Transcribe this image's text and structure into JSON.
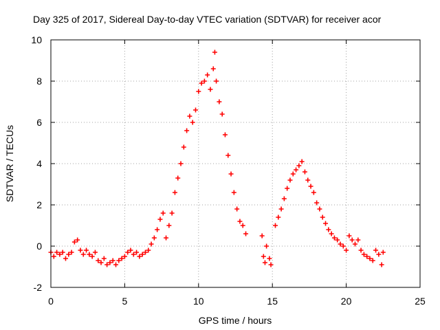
{
  "chart_data": {
    "type": "scatter",
    "title": "Day 325 of 2017, Sidereal Day-to-day VTEC variation (SDTVAR) for receiver acor",
    "xlabel": "GPS time / hours",
    "ylabel": "SDTVAR / TECUs",
    "xlim": [
      0,
      25
    ],
    "ylim": [
      -2,
      10
    ],
    "xticks": [
      0,
      5,
      10,
      15,
      20,
      25
    ],
    "yticks": [
      -2,
      0,
      2,
      4,
      6,
      8,
      10
    ],
    "xtick_labels": [
      "0",
      "5",
      "10",
      "15",
      "20",
      "25"
    ],
    "ytick_labels": [
      "-2",
      "0",
      "2",
      "4",
      "6",
      "8",
      "10"
    ],
    "grid": true,
    "marker": "+",
    "marker_color": "#ff0000",
    "series": [
      {
        "name": "SDTVAR",
        "points": [
          [
            0.0,
            -0.3
          ],
          [
            0.2,
            -0.5
          ],
          [
            0.4,
            -0.3
          ],
          [
            0.6,
            -0.4
          ],
          [
            0.8,
            -0.3
          ],
          [
            1.0,
            -0.6
          ],
          [
            1.2,
            -0.4
          ],
          [
            1.4,
            -0.3
          ],
          [
            1.6,
            0.2
          ],
          [
            1.8,
            0.3
          ],
          [
            2.0,
            -0.2
          ],
          [
            2.2,
            -0.4
          ],
          [
            2.4,
            -0.2
          ],
          [
            2.6,
            -0.4
          ],
          [
            2.8,
            -0.5
          ],
          [
            3.0,
            -0.3
          ],
          [
            3.2,
            -0.7
          ],
          [
            3.4,
            -0.8
          ],
          [
            3.6,
            -0.6
          ],
          [
            3.8,
            -0.9
          ],
          [
            4.0,
            -0.8
          ],
          [
            4.2,
            -0.7
          ],
          [
            4.4,
            -0.9
          ],
          [
            4.6,
            -0.7
          ],
          [
            4.8,
            -0.6
          ],
          [
            5.0,
            -0.5
          ],
          [
            5.2,
            -0.3
          ],
          [
            5.4,
            -0.2
          ],
          [
            5.6,
            -0.4
          ],
          [
            5.8,
            -0.3
          ],
          [
            6.0,
            -0.5
          ],
          [
            6.2,
            -0.4
          ],
          [
            6.4,
            -0.3
          ],
          [
            6.6,
            -0.2
          ],
          [
            6.8,
            0.1
          ],
          [
            7.0,
            0.4
          ],
          [
            7.2,
            0.8
          ],
          [
            7.4,
            1.3
          ],
          [
            7.6,
            1.6
          ],
          [
            7.8,
            0.4
          ],
          [
            8.0,
            1.0
          ],
          [
            8.2,
            1.6
          ],
          [
            8.4,
            2.6
          ],
          [
            8.6,
            3.3
          ],
          [
            8.8,
            4.0
          ],
          [
            9.0,
            4.8
          ],
          [
            9.2,
            5.6
          ],
          [
            9.4,
            6.3
          ],
          [
            9.6,
            6.0
          ],
          [
            9.8,
            6.6
          ],
          [
            10.0,
            7.5
          ],
          [
            10.2,
            7.9
          ],
          [
            10.4,
            8.0
          ],
          [
            10.6,
            8.3
          ],
          [
            10.8,
            7.6
          ],
          [
            11.0,
            8.6
          ],
          [
            11.1,
            9.4
          ],
          [
            11.2,
            8.0
          ],
          [
            11.4,
            7.0
          ],
          [
            11.6,
            6.4
          ],
          [
            11.8,
            5.4
          ],
          [
            12.0,
            4.4
          ],
          [
            12.2,
            3.5
          ],
          [
            12.4,
            2.6
          ],
          [
            12.6,
            1.8
          ],
          [
            12.8,
            1.2
          ],
          [
            13.0,
            1.0
          ],
          [
            13.2,
            0.6
          ],
          [
            14.3,
            0.5
          ],
          [
            14.4,
            -0.5
          ],
          [
            14.5,
            -0.8
          ],
          [
            14.6,
            0.0
          ],
          [
            14.8,
            -0.6
          ],
          [
            14.9,
            -0.9
          ],
          [
            15.2,
            1.0
          ],
          [
            15.4,
            1.4
          ],
          [
            15.6,
            1.8
          ],
          [
            15.8,
            2.3
          ],
          [
            16.0,
            2.8
          ],
          [
            16.2,
            3.2
          ],
          [
            16.4,
            3.5
          ],
          [
            16.6,
            3.7
          ],
          [
            16.8,
            3.9
          ],
          [
            17.0,
            4.1
          ],
          [
            17.2,
            3.6
          ],
          [
            17.4,
            3.2
          ],
          [
            17.6,
            2.9
          ],
          [
            17.8,
            2.6
          ],
          [
            18.0,
            2.1
          ],
          [
            18.2,
            1.8
          ],
          [
            18.4,
            1.4
          ],
          [
            18.6,
            1.1
          ],
          [
            18.8,
            0.8
          ],
          [
            19.0,
            0.6
          ],
          [
            19.2,
            0.4
          ],
          [
            19.4,
            0.3
          ],
          [
            19.6,
            0.1
          ],
          [
            19.8,
            0.0
          ],
          [
            20.0,
            -0.2
          ],
          [
            20.2,
            0.5
          ],
          [
            20.4,
            0.3
          ],
          [
            20.6,
            0.1
          ],
          [
            20.8,
            0.3
          ],
          [
            21.0,
            -0.2
          ],
          [
            21.2,
            -0.4
          ],
          [
            21.4,
            -0.5
          ],
          [
            21.6,
            -0.6
          ],
          [
            21.8,
            -0.7
          ],
          [
            22.0,
            -0.2
          ],
          [
            22.2,
            -0.4
          ],
          [
            22.4,
            -0.9
          ],
          [
            22.5,
            -0.3
          ]
        ]
      }
    ]
  }
}
